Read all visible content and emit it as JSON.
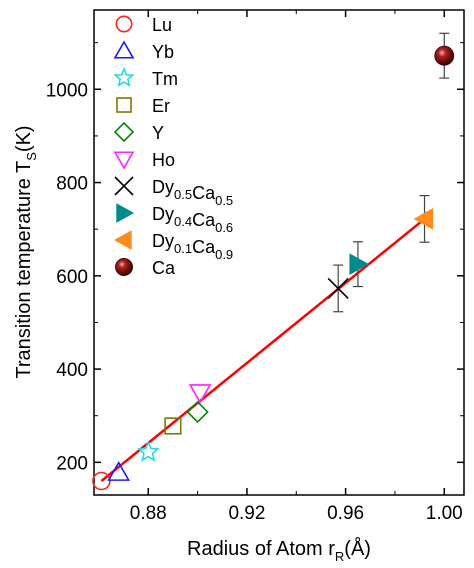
{
  "chart_data": {
    "type": "scatter",
    "xlabel": "Radius of Atom r",
    "xlabel_sub": "R",
    "xlabel_unit": "(Å)",
    "ylabel": "Transition temperature T",
    "ylabel_sub": "S",
    "ylabel_unit": "(K)",
    "xlim": [
      0.858,
      1.008
    ],
    "ylim": [
      130,
      1170
    ],
    "xticks": [
      0.88,
      0.92,
      0.96,
      1.0
    ],
    "xtick_labels": [
      "0.88",
      "0.92",
      "0.96",
      "1.00"
    ],
    "yticks": [
      200,
      400,
      600,
      800,
      1000
    ],
    "ytick_labels": [
      "200",
      "400",
      "600",
      "800",
      "1000"
    ],
    "legend_placement": "top-left",
    "series": [
      {
        "name": "Lu",
        "name_parts": [
          [
            "Lu",
            ""
          ]
        ],
        "marker": "circle-open",
        "color": "#ff2020",
        "x": 0.861,
        "y": 160
      },
      {
        "name": "Yb",
        "name_parts": [
          [
            "Yb",
            ""
          ]
        ],
        "marker": "triangle-up-open",
        "color": "#1a1aff",
        "x": 0.868,
        "y": 178
      },
      {
        "name": "Tm",
        "name_parts": [
          [
            "Tm",
            ""
          ]
        ],
        "marker": "star-open",
        "color": "#22dddd",
        "x": 0.88,
        "y": 222
      },
      {
        "name": "Er",
        "name_parts": [
          [
            "Er",
            ""
          ]
        ],
        "marker": "square-open",
        "color": "#7a7a00",
        "x": 0.89,
        "y": 278
      },
      {
        "name": "Y",
        "name_parts": [
          [
            "Y",
            ""
          ]
        ],
        "marker": "diamond-open",
        "color": "#008800",
        "x": 0.9,
        "y": 308
      },
      {
        "name": "Ho",
        "name_parts": [
          [
            "Ho",
            ""
          ]
        ],
        "marker": "triangle-down-open",
        "color": "#ff22ff",
        "x": 0.901,
        "y": 350
      },
      {
        "name": "Dy0.5Ca0.5",
        "name_parts": [
          [
            "Dy",
            "0.5"
          ],
          [
            "Ca",
            "0.5"
          ]
        ],
        "marker": "cross",
        "color": "#000000",
        "x": 0.957,
        "y": 573,
        "yerr": 50
      },
      {
        "name": "Dy0.4Ca0.6",
        "name_parts": [
          [
            "Dy",
            "0.4"
          ],
          [
            "Ca",
            "0.6"
          ]
        ],
        "marker": "triangle-right-filled",
        "color": "#008b8b",
        "x": 0.965,
        "y": 625,
        "yerr": 48
      },
      {
        "name": "Dy0.1Ca0.9",
        "name_parts": [
          [
            "Dy",
            "0.1"
          ],
          [
            "Ca",
            "0.9"
          ]
        ],
        "marker": "triangle-left-filled",
        "color": "#ff8c1a",
        "x": 0.992,
        "y": 722,
        "yerr": 50
      },
      {
        "name": "Ca",
        "name_parts": [
          [
            "Ca",
            ""
          ]
        ],
        "marker": "sphere",
        "color": "#8b1010",
        "x": 1.0,
        "y": 1072,
        "yerr": 48
      }
    ],
    "fit_line": {
      "color": "#ff0000",
      "x": [
        0.861,
        0.992
      ],
      "y": [
        160,
        722
      ]
    }
  }
}
